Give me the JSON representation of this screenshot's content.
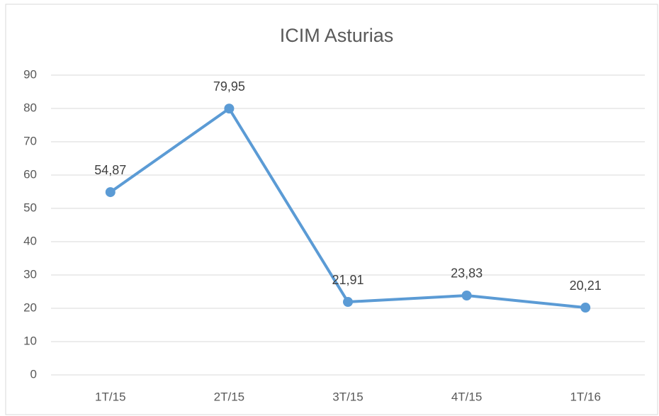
{
  "chart_data": {
    "type": "line",
    "title": "ICIM Asturias",
    "categories": [
      "1T/15",
      "2T/15",
      "3T/15",
      "4T/15",
      "1T/16"
    ],
    "values": [
      54.87,
      79.95,
      21.91,
      23.83,
      20.21
    ],
    "value_labels": [
      "54,87",
      "79,95",
      "21,91",
      "23,83",
      "20,21"
    ],
    "color": "#5b9bd5",
    "ylim": [
      0,
      90
    ],
    "yticks": [
      0,
      10,
      20,
      30,
      40,
      50,
      60,
      70,
      80,
      90
    ],
    "grid": true
  }
}
